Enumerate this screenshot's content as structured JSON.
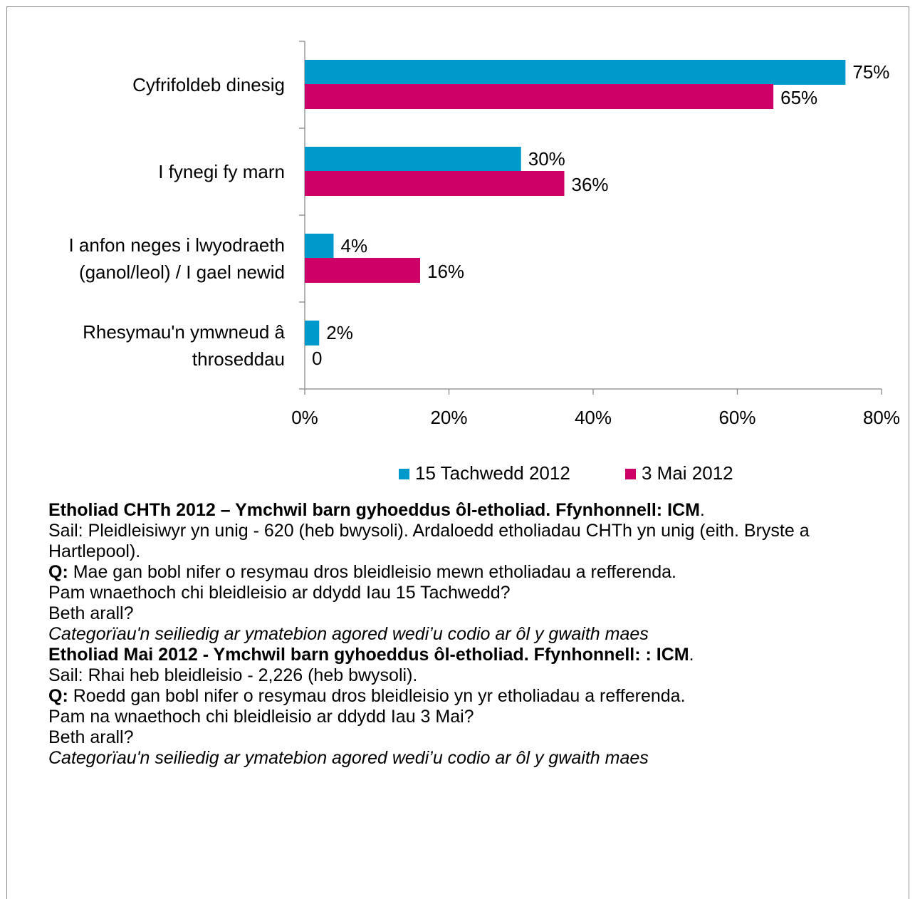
{
  "chart_data": {
    "type": "bar",
    "orientation": "horizontal",
    "categories": [
      "Cyfrifoldeb dinesig",
      "I fynegi fy marn",
      "I anfon neges i lwyodraeth (ganol/leol) / I gael newid",
      "Rhesymau'n ymwneud â throseddau"
    ],
    "series": [
      {
        "name": "15 Tachwedd 2012",
        "color": "#0099cc",
        "values": [
          75,
          30,
          4,
          2
        ],
        "value_labels": [
          "75%",
          "30%",
          "4%",
          "2%"
        ]
      },
      {
        "name": "3 Mai 2012",
        "color": "#cc0066",
        "values": [
          65,
          36,
          16,
          0
        ],
        "value_labels": [
          "65%",
          "36%",
          "16%",
          "0"
        ]
      }
    ],
    "xlim": [
      0,
      80
    ],
    "xticks": [
      {
        "value": 0,
        "label": "0%"
      },
      {
        "value": 20,
        "label": "20%"
      },
      {
        "value": 40,
        "label": "40%"
      },
      {
        "value": 60,
        "label": "60%"
      },
      {
        "value": 80,
        "label": "80%"
      }
    ],
    "legend": "bottom"
  },
  "notes": [
    {
      "bold": "Etholiad CHTh 2012 – Ymchwil barn gyhoeddus ôl-etholiad. Ffynhonnell: ICM",
      "text": "."
    },
    {
      "text": "Sail: Pleidleisiwyr yn unig - 620 (heb bwysoli). Ardaloedd etholiadau CHTh yn unig (eith. Bryste a Hartlepool)."
    },
    {
      "bold": "Q:",
      "text": " Mae gan bobl nifer o resymau dros bleidleisio mewn etholiadau a refferenda."
    },
    {
      "text": "Pam wnaethoch chi bleidleisio ar ddydd Iau 15 Tachwedd?"
    },
    {
      "text": "Beth arall?"
    },
    {
      "italic": "Categorïau'n seiliedig ar ymatebion agored wedi’u codio ar ôl y gwaith maes"
    },
    {
      "bold": "Etholiad Mai 2012 - Ymchwil barn gyhoeddus ôl-etholiad. Ffynhonnell: : ICM",
      "text": "."
    },
    {
      "text": "Sail: Rhai heb bleidleisio  - 2,226 (heb bwysoli)."
    },
    {
      "bold": "Q:",
      "text": " Roedd gan bobl nifer o resymau dros bleidleisio yn yr etholiadau a refferenda."
    },
    {
      "text": "Pam na wnaethoch chi bleidleisio ar ddydd Iau 3 Mai?"
    },
    {
      "text": "Beth arall?"
    },
    {
      "italic": "Categorïau'n seiliedig ar ymatebion agored wedi’u codio ar ôl y gwaith maes"
    }
  ]
}
